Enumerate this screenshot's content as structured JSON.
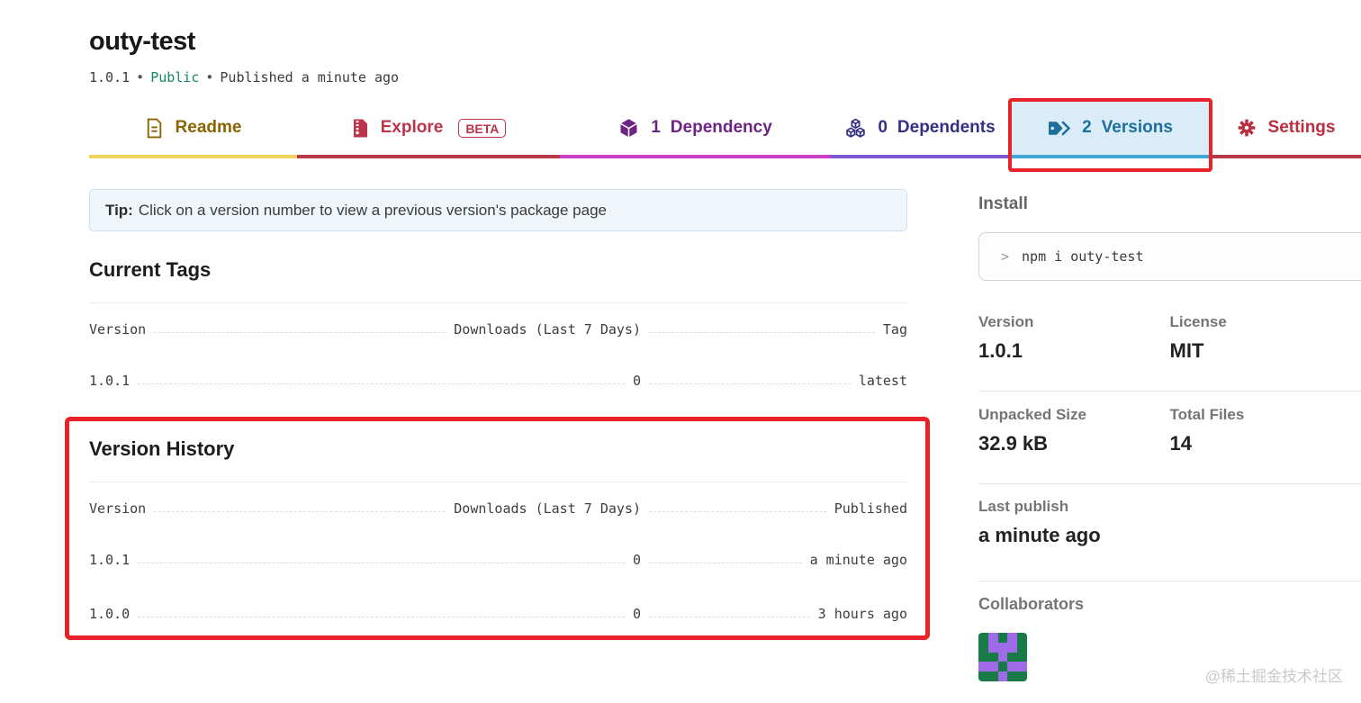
{
  "colors": {
    "annotation_red": "#e82227",
    "active_tab_bg": "#d9ecf7",
    "tab_readme": "#8a6402",
    "tab_explore": "#bb3448",
    "tab_dependency": "#6e2482",
    "tab_dependents": "#343084",
    "tab_versions": "#1d6f9e",
    "tab_settings": "#bb2f3f",
    "underline_yellow": "#efd35c",
    "underline_red": "#b63945",
    "underline_magenta": "#ca3fc6",
    "underline_violet": "#7e57d2",
    "underline_cyan": "#41a7d6",
    "public_green": "#138a5f"
  },
  "header": {
    "package_name": "outy-test",
    "version": "1.0.1",
    "separator": "•",
    "visibility": "Public",
    "published": "Published a minute ago"
  },
  "tabs": [
    {
      "label": "Readme"
    },
    {
      "label": "Explore",
      "badge": "BETA"
    },
    {
      "count": "1",
      "label": "Dependency"
    },
    {
      "count": "0",
      "label": "Dependents"
    },
    {
      "count": "2",
      "label": "Versions",
      "active": true
    },
    {
      "label": "Settings"
    }
  ],
  "tip": {
    "label": "Tip:",
    "text": "Click on a version number to view a previous version's package page"
  },
  "current_tags": {
    "title": "Current Tags",
    "columns": [
      "Version",
      "Downloads (Last 7 Days)",
      "Tag"
    ],
    "rows": [
      {
        "version": "1.0.1",
        "downloads": "0",
        "tag": "latest"
      }
    ]
  },
  "version_history": {
    "title": "Version History",
    "columns": [
      "Version",
      "Downloads (Last 7 Days)",
      "Published"
    ],
    "rows": [
      {
        "version": "1.0.1",
        "downloads": "0",
        "published": "a minute ago"
      },
      {
        "version": "1.0.0",
        "downloads": "0",
        "published": "3 hours ago"
      }
    ]
  },
  "sidebar": {
    "install": {
      "title": "Install",
      "prompt": ">",
      "command": "npm i outy-test"
    },
    "stats": [
      {
        "label": "Version",
        "value": "1.0.1"
      },
      {
        "label": "License",
        "value": "MIT"
      },
      {
        "label": "Unpacked Size",
        "value": "32.9 kB"
      },
      {
        "label": "Total Files",
        "value": "14"
      }
    ],
    "last_publish": {
      "label": "Last publish",
      "value": "a minute ago"
    },
    "collaborators": {
      "title": "Collaborators",
      "avatar": {
        "colors": {
          "bg": "#187a47",
          "fg": "#a06be8"
        },
        "pattern": [
          "01010",
          "01110",
          "00100",
          "11011",
          "00100"
        ]
      }
    }
  },
  "watermark": "@稀土掘金技术社区"
}
